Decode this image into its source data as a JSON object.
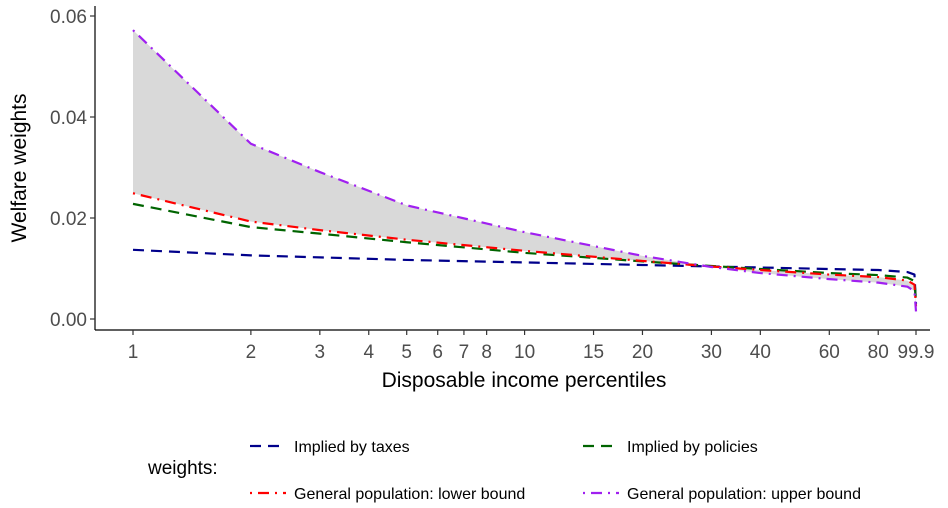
{
  "chart_data": {
    "type": "line",
    "xlabel": "Disposable income percentiles",
    "ylabel": "Welfare weights",
    "x_scale": "log",
    "xlim": [
      1,
      99.9
    ],
    "ylim": [
      0,
      0.06
    ],
    "x_ticks": [
      1,
      2,
      3,
      4,
      5,
      6,
      7,
      8,
      10,
      15,
      20,
      30,
      40,
      60,
      80,
      99.9
    ],
    "x_tick_labels": [
      "1",
      "2",
      "3",
      "4",
      "5",
      "6",
      "7",
      "8",
      "10",
      "15",
      "20",
      "30",
      "40",
      "60",
      "80",
      "99.9"
    ],
    "y_ticks": [
      0,
      0.02,
      0.04,
      0.06
    ],
    "y_tick_labels": [
      "0.00",
      "0.02",
      "0.04",
      "0.06"
    ],
    "grid": false,
    "legend_title": "weights:",
    "legend_position": "bottom",
    "shaded_band": {
      "between": [
        "General population: lower bound",
        "General population: upper bound"
      ],
      "color": "#d9d9d9"
    },
    "x": [
      1,
      2,
      3,
      5,
      10,
      20,
      30,
      40,
      60,
      80,
      95,
      99,
      99.9
    ],
    "series": [
      {
        "name": "Implied by taxes",
        "color": "#00008b",
        "dash": "dashed",
        "values": [
          0.0137,
          0.0126,
          0.0122,
          0.0117,
          0.0112,
          0.0107,
          0.0104,
          0.0102,
          0.0099,
          0.0097,
          0.0093,
          0.0088,
          0.003
        ]
      },
      {
        "name": "Implied by policies",
        "color": "#006400",
        "dash": "dashed",
        "values": [
          0.0228,
          0.0182,
          0.0169,
          0.0152,
          0.0131,
          0.0114,
          0.0105,
          0.0099,
          0.0091,
          0.0087,
          0.0082,
          0.0075,
          0.0035
        ]
      },
      {
        "name": "General population: lower bound",
        "color": "#ff0000",
        "dash": "dotdash",
        "values": [
          0.0249,
          0.0193,
          0.0176,
          0.0157,
          0.0135,
          0.0115,
          0.0104,
          0.0097,
          0.0088,
          0.0083,
          0.0076,
          0.0068,
          0.0025
        ]
      },
      {
        "name": "General population: upper bound",
        "color": "#a020f0",
        "dash": "dotdash",
        "values": [
          0.0572,
          0.0347,
          0.0291,
          0.0225,
          0.0172,
          0.0125,
          0.0103,
          0.0091,
          0.0079,
          0.0072,
          0.0064,
          0.0055,
          0.0015
        ]
      }
    ]
  }
}
